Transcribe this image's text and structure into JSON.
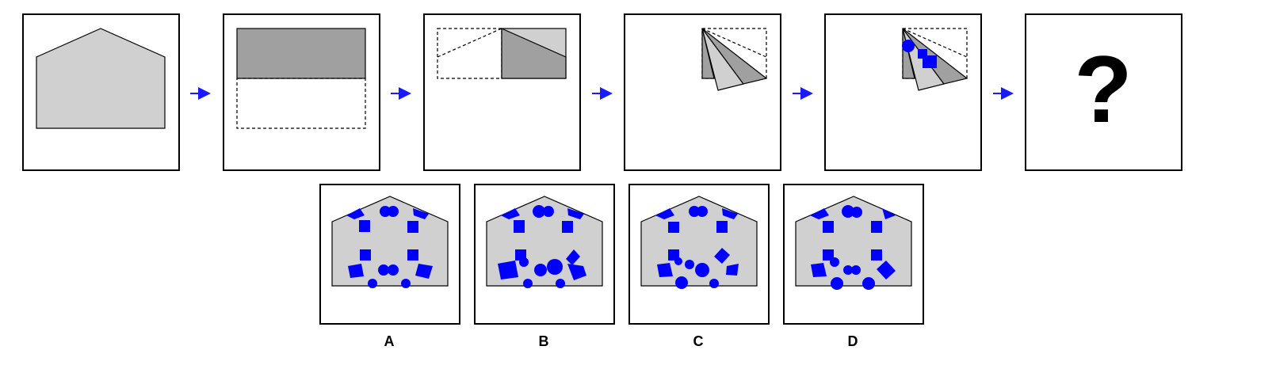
{
  "colors": {
    "paper_light": "#d0d0d0",
    "paper_dark": "#a0a0a0",
    "punch_blue": "#0000ff",
    "arrow_blue": "#1a1aff",
    "frame": "#000000"
  },
  "sequence": {
    "steps": [
      {
        "name": "unfolded-pentagon-paper",
        "icon": "pentagon-icon"
      },
      {
        "name": "fold-bottom-up",
        "icon": "fold-icon"
      },
      {
        "name": "fold-left-to-right",
        "icon": "fold-icon"
      },
      {
        "name": "fan-fold",
        "icon": "fold-icon"
      },
      {
        "name": "punch-holes",
        "icon": "punch-icon"
      }
    ],
    "question_mark": "?"
  },
  "options": [
    {
      "label": "A"
    },
    {
      "label": "B"
    },
    {
      "label": "C"
    },
    {
      "label": "D"
    }
  ]
}
